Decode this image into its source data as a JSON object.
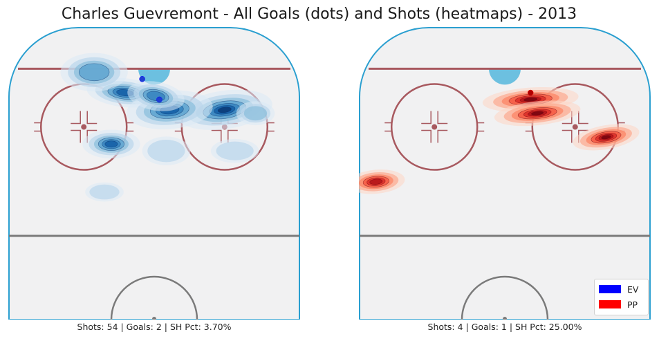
{
  "title": "Charles Guevremont - All Goals (dots) and Shots (heatmaps) - 2013",
  "colors": {
    "rink_bg": "#f1f1f2",
    "boards": "#2a9fd0",
    "red_line": "#a8595f",
    "center_line": "#7a7a7a",
    "crease": "#6cc0e0",
    "ev": "#0000ff",
    "pp": "#ff0000"
  },
  "legend": {
    "ev_label": "EV",
    "pp_label": "PP"
  },
  "chart_data": [
    {
      "type": "heatmap",
      "panel": "left",
      "strength": "EV",
      "colormap": "Blues",
      "caption": "Shots: 54 | Goals: 2 | SH Pct: 3.70%",
      "shots": 54,
      "goals": 2,
      "sh_pct": 3.7,
      "goal_points": [
        {
          "x": 44,
          "y": -21
        },
        {
          "x": 39,
          "y": -15
        }
      ],
      "shot_density": [
        {
          "x": 63,
          "y": -24,
          "sx": 10,
          "sy": 4,
          "w": 1.0,
          "rot": -8
        },
        {
          "x": 34,
          "y": -19,
          "sx": 8,
          "sy": 3,
          "w": 0.85,
          "rot": 6
        },
        {
          "x": 47,
          "y": -24,
          "sx": 9,
          "sy": 4,
          "w": 0.8,
          "rot": -5
        },
        {
          "x": 30,
          "y": -34,
          "sx": 6,
          "sy": 3,
          "w": 0.8,
          "rot": 0
        },
        {
          "x": 43,
          "y": -20,
          "sx": 6,
          "sy": 3,
          "w": 0.7,
          "rot": 10
        },
        {
          "x": 25,
          "y": -13,
          "sx": 7,
          "sy": 4,
          "w": 0.6,
          "rot": 0
        },
        {
          "x": 72,
          "y": -25,
          "sx": 4,
          "sy": 2.5,
          "w": 0.45,
          "rot": 0
        },
        {
          "x": 66,
          "y": -36,
          "sx": 5,
          "sy": 2.5,
          "w": 0.35,
          "rot": 0
        },
        {
          "x": 28,
          "y": -48,
          "sx": 4,
          "sy": 2,
          "w": 0.25,
          "rot": 0
        },
        {
          "x": 46,
          "y": -36,
          "sx": 5,
          "sy": 3,
          "w": 0.3,
          "rot": 0
        }
      ]
    },
    {
      "type": "heatmap",
      "panel": "right",
      "strength": "PP",
      "colormap": "Reds",
      "caption": "Shots: 4 | Goals: 1 | SH Pct: 25.00%",
      "shots": 4,
      "goals": 1,
      "sh_pct": 25.0,
      "goal_points": [
        {
          "x": 50,
          "y": -19
        }
      ],
      "shot_density": [
        {
          "x": 50,
          "y": -21,
          "sx": 10,
          "sy": 2.5,
          "w": 1.0,
          "rot": -4
        },
        {
          "x": 52,
          "y": -25,
          "sx": 9,
          "sy": 2.5,
          "w": 0.95,
          "rot": -6
        },
        {
          "x": 72,
          "y": -32,
          "sx": 7,
          "sy": 2.5,
          "w": 0.95,
          "rot": -10
        },
        {
          "x": 5,
          "y": -45,
          "sx": 6,
          "sy": 2.5,
          "w": 0.9,
          "rot": -5
        }
      ]
    }
  ],
  "captions": {
    "left": "Shots: 54 | Goals: 2 | SH Pct: 3.70%",
    "right": "Shots: 4 | Goals: 1 | SH Pct: 25.00%"
  }
}
